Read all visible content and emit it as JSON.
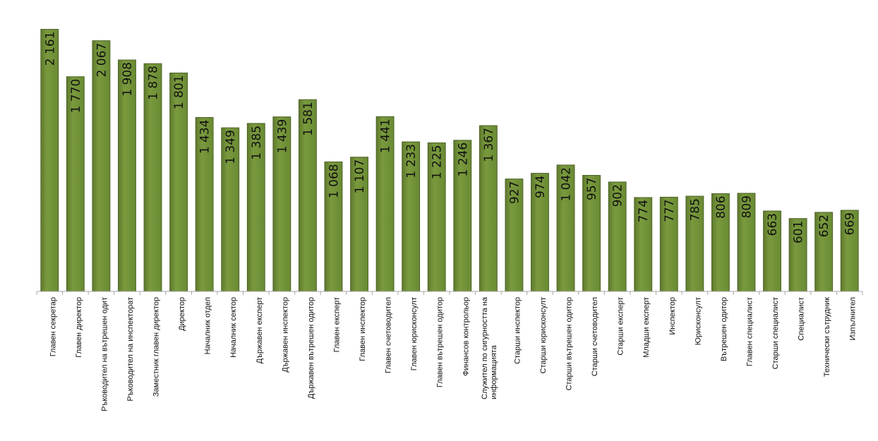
{
  "chart_data": {
    "type": "bar",
    "title": "",
    "xlabel": "",
    "ylabel": "",
    "ylim": [
      0,
      2200
    ],
    "grid": false,
    "legend": "none",
    "bar_color": "#76923c",
    "bar_edge_color": "#4f6228",
    "categories": [
      "Главен секретар",
      "Главен директор",
      "Ръководител на вътрешен одит",
      "Ръководител на инспекторат",
      "Заместник главен директор",
      "Директор",
      "Началник отдел",
      "Началник сектор",
      "Държавен експерт",
      "Държавен инспектор",
      "Държавен вътрешен одитор",
      "Главен експерт",
      "Главен инспектор",
      "Главен счетоводител",
      "Главен юрисконсулт",
      "Главен вътрешен одитор",
      "Финансов контрольор",
      "Служител по сигурността на информацията",
      "Старши инспектор",
      "Старши юрисконсулт",
      "Старши вътрешен одитор",
      "Старши счетоводител",
      "Старши експерт",
      "Младши експерт",
      "Инспектор",
      "Юрисконсулт",
      "Вътрешен одитор",
      "Главен специалист",
      "Старши специалист",
      "Специалист",
      "Технически сътрудник",
      "Изпълнител"
    ],
    "values": [
      2161,
      1770,
      2067,
      1908,
      1878,
      1801,
      1434,
      1349,
      1385,
      1439,
      1581,
      1068,
      1107,
      1441,
      1233,
      1225,
      1246,
      1367,
      927,
      974,
      1042,
      957,
      902,
      774,
      777,
      785,
      806,
      809,
      663,
      601,
      652,
      669
    ],
    "value_labels": [
      "2 161",
      "1 770",
      "2 067",
      "1 908",
      "1 878",
      "1 801",
      "1 434",
      "1 349",
      "1 385",
      "1 439",
      "1 581",
      "1 068",
      "1 107",
      "1 441",
      "1 233",
      "1 225",
      "1 246",
      "1 367",
      "927",
      "974",
      "1 042",
      "957",
      "902",
      "774",
      "777",
      "785",
      "806",
      "809",
      "663",
      "601",
      "652",
      "669"
    ]
  }
}
